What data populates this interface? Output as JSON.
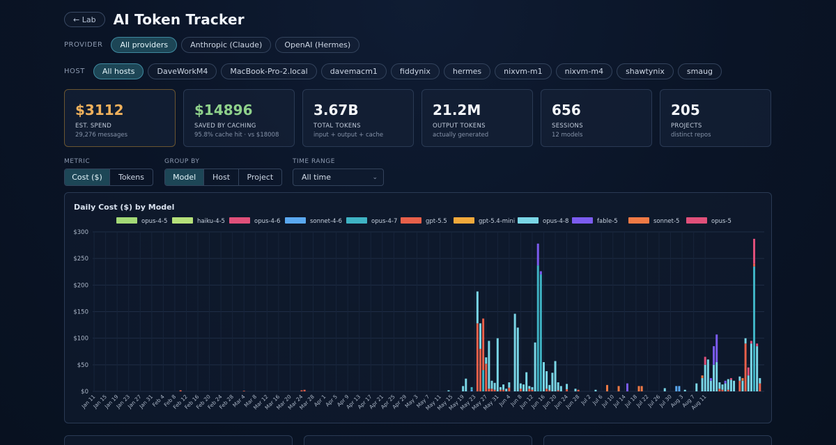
{
  "header": {
    "back_label": "← Lab",
    "title": "AI Token Tracker"
  },
  "provider": {
    "label": "PROVIDER",
    "options": [
      "All providers",
      "Anthropic (Claude)",
      "OpenAI (Hermes)"
    ],
    "selected": "All providers"
  },
  "host": {
    "label": "HOST",
    "options": [
      "All hosts",
      "DaveWorkM4",
      "MacBook-Pro-2.local",
      "davemacm1",
      "fiddynix",
      "hermes",
      "nixvm-m1",
      "nixvm-m4",
      "shawtynix",
      "smaug"
    ],
    "selected": "All hosts"
  },
  "stats": [
    {
      "value": "$3112",
      "title": "EST. SPEND",
      "sub": "29,276 messages",
      "color": "#f0b15c"
    },
    {
      "value": "$14896",
      "title": "SAVED BY CACHING",
      "sub": "95.8% cache hit · vs $18008",
      "color": "#8fd18b"
    },
    {
      "value": "3.67B",
      "title": "TOTAL TOKENS",
      "sub": "input + output + cache",
      "color": "#f4f7fb"
    },
    {
      "value": "21.2M",
      "title": "OUTPUT TOKENS",
      "sub": "actually generated",
      "color": "#f4f7fb"
    },
    {
      "value": "656",
      "title": "SESSIONS",
      "sub": "12 models",
      "color": "#f4f7fb"
    },
    {
      "value": "205",
      "title": "PROJECTS",
      "sub": "distinct repos",
      "color": "#f4f7fb"
    }
  ],
  "controls": {
    "metric": {
      "label": "METRIC",
      "options": [
        "Cost ($)",
        "Tokens"
      ],
      "selected": "Cost ($)"
    },
    "group_by": {
      "label": "GROUP BY",
      "options": [
        "Model",
        "Host",
        "Project"
      ],
      "selected": "Model"
    },
    "time_range": {
      "label": "TIME RANGE",
      "value": "All time"
    }
  },
  "chart_data": {
    "type": "bar",
    "stacked": true,
    "title": "Daily Cost ($) by Model",
    "ylim": [
      0,
      300
    ],
    "yticks": [
      "$0",
      "$50",
      "$100",
      "$150",
      "$200",
      "$250",
      "$300"
    ],
    "grid": true,
    "legend_position": "top",
    "series": [
      {
        "name": "opus-4-5",
        "color": "#a3d977"
      },
      {
        "name": "haiku-4-5",
        "color": "#b5e07a"
      },
      {
        "name": "opus-4-6",
        "color": "#e0507a"
      },
      {
        "name": "sonnet-4-6",
        "color": "#5aa8f0"
      },
      {
        "name": "opus-4-7",
        "color": "#3fb3c4"
      },
      {
        "name": "gpt-5.5",
        "color": "#e8604a"
      },
      {
        "name": "gpt-5.4-mini",
        "color": "#f2a93b"
      },
      {
        "name": "opus-4-8",
        "color": "#7ad6e6"
      },
      {
        "name": "fable-5",
        "color": "#7b5cf0"
      },
      {
        "name": "sonnet-5",
        "color": "#f07a45"
      },
      {
        "name": "opus-5",
        "color": "#e0507a"
      }
    ],
    "x_ticks": [
      "Jan 11",
      "Jan 15",
      "Jan 19",
      "Jan 23",
      "Jan 27",
      "Jan 31",
      "Feb 4",
      "Feb 8",
      "Feb 12",
      "Feb 16",
      "Feb 20",
      "Feb 24",
      "Feb 28",
      "Mar 4",
      "Mar 8",
      "Mar 12",
      "Mar 16",
      "Mar 20",
      "Mar 24",
      "Mar 28",
      "Apr 1",
      "Apr 5",
      "Apr 9",
      "Apr 13",
      "Apr 17",
      "Apr 21",
      "Apr 25",
      "Apr 29",
      "May 3",
      "May 7",
      "May 11",
      "May 15",
      "May 19",
      "May 23",
      "May 27",
      "May 31",
      "Jun 4",
      "Jun 8",
      "Jun 12",
      "Jun 16",
      "Jun 20",
      "Jun 24",
      "Jun 28",
      "Jul 2",
      "Jul 6",
      "Jul 10",
      "Jul 14",
      "Jul 18",
      "Jul 22",
      "Jul 26",
      "Jul 30",
      "Aug 3",
      "Aug 7",
      "Aug 11"
    ],
    "start_date": "Jan 11",
    "days": [
      {
        "d": 30,
        "s": {
          "gpt-5.5": 2
        }
      },
      {
        "d": 52,
        "s": {
          "gpt-5.5": 1
        }
      },
      {
        "d": 72,
        "s": {
          "gpt-5.5": 2
        }
      },
      {
        "d": 73,
        "s": {
          "gpt-5.5": 3
        }
      },
      {
        "d": 123,
        "s": {
          "opus-4-8": 2
        }
      },
      {
        "d": 128,
        "s": {
          "opus-4-8": 10
        }
      },
      {
        "d": 129,
        "s": {
          "opus-4-8": 24
        }
      },
      {
        "d": 131,
        "s": {
          "opus-4-7": 5,
          "sonnet-4-6": 3
        }
      },
      {
        "d": 133,
        "s": {
          "opus-4-8": 60,
          "gpt-5.5": 128
        }
      },
      {
        "d": 134,
        "s": {
          "opus-4-8": 48,
          "gpt-5.5": 80
        }
      },
      {
        "d": 135,
        "s": {
          "opus-4-7": 40,
          "gpt-5.5": 97
        }
      },
      {
        "d": 136,
        "s": {
          "opus-4-8": 12,
          "gpt-5.5": 52
        }
      },
      {
        "d": 137,
        "s": {
          "opus-4-8": 90,
          "gpt-5.5": 5
        }
      },
      {
        "d": 138,
        "s": {
          "opus-4-8": 15,
          "gpt-5.5": 5
        }
      },
      {
        "d": 139,
        "s": {
          "opus-4-8": 13,
          "gpt-5.5": 3
        }
      },
      {
        "d": 140,
        "s": {
          "opus-4-8": 100
        }
      },
      {
        "d": 141,
        "s": {
          "opus-4-8": 5,
          "gpt-5.5": 3
        }
      },
      {
        "d": 142,
        "s": {
          "opus-4-8": 10,
          "gpt-5.5": 3
        }
      },
      {
        "d": 143,
        "s": {
          "opus-4-8": 5
        }
      },
      {
        "d": 144,
        "s": {
          "opus-4-8": 10,
          "gpt-5.5": 7
        }
      },
      {
        "d": 146,
        "s": {
          "opus-4-8": 146
        }
      },
      {
        "d": 147,
        "s": {
          "opus-4-8": 120
        }
      },
      {
        "d": 148,
        "s": {
          "opus-4-8": 10,
          "gpt-5.5": 5
        }
      },
      {
        "d": 149,
        "s": {
          "opus-4-8": 13
        }
      },
      {
        "d": 150,
        "s": {
          "opus-4-8": 36
        }
      },
      {
        "d": 151,
        "s": {
          "opus-4-8": 5,
          "gpt-5.5": 5
        }
      },
      {
        "d": 152,
        "s": {
          "opus-4-8": 5,
          "gpt-5.5": 3
        }
      },
      {
        "d": 153,
        "s": {
          "opus-4-8": 92
        }
      },
      {
        "d": 154,
        "s": {
          "opus-4-7": 237,
          "fable-5": 41
        }
      },
      {
        "d": 155,
        "s": {
          "opus-4-7": 220,
          "fable-5": 6
        }
      },
      {
        "d": 156,
        "s": {
          "opus-4-8": 55
        }
      },
      {
        "d": 157,
        "s": {
          "opus-4-8": 33,
          "gpt-5.5": 5
        }
      },
      {
        "d": 158,
        "s": {
          "opus-4-8": 10,
          "gpt-5.5": 2
        }
      },
      {
        "d": 159,
        "s": {
          "opus-4-8": 35
        }
      },
      {
        "d": 160,
        "s": {
          "opus-4-8": 57
        }
      },
      {
        "d": 161,
        "s": {
          "opus-4-8": 15,
          "gpt-5.5": 2
        }
      },
      {
        "d": 162,
        "s": {
          "opus-4-8": 10
        }
      },
      {
        "d": 164,
        "s": {
          "opus-4-8": 10,
          "gpt-5.5": 4
        }
      },
      {
        "d": 167,
        "s": {
          "opus-4-8": 5
        }
      },
      {
        "d": 168,
        "s": {
          "gpt-5.5": 3
        }
      },
      {
        "d": 174,
        "s": {
          "opus-4-8": 3
        }
      },
      {
        "d": 178,
        "s": {
          "sonnet-5": 12
        }
      },
      {
        "d": 182,
        "s": {
          "sonnet-5": 10
        }
      },
      {
        "d": 185,
        "s": {
          "fable-5": 15
        }
      },
      {
        "d": 189,
        "s": {
          "sonnet-5": 10
        }
      },
      {
        "d": 190,
        "s": {
          "sonnet-5": 10
        }
      },
      {
        "d": 198,
        "s": {
          "opus-4-8": 6
        }
      },
      {
        "d": 202,
        "s": {
          "sonnet-4-6": 10
        }
      },
      {
        "d": 203,
        "s": {
          "sonnet-4-6": 10
        }
      },
      {
        "d": 205,
        "s": {
          "opus-4-8": 3
        }
      },
      {
        "d": 209,
        "s": {
          "opus-4-8": 15
        }
      },
      {
        "d": 211,
        "s": {
          "opus-4-8": 25,
          "sonnet-5": 5
        }
      },
      {
        "d": 212,
        "s": {
          "opus-4-8": 50,
          "opus-5": 15
        }
      },
      {
        "d": 213,
        "s": {
          "opus-4-8": 60
        }
      },
      {
        "d": 214,
        "s": {
          "opus-4-8": 20,
          "fable-5": 5
        }
      },
      {
        "d": 215,
        "s": {
          "opus-4-8": 50,
          "fable-5": 35
        }
      },
      {
        "d": 216,
        "s": {
          "opus-4-8": 55,
          "fable-5": 52
        }
      },
      {
        "d": 217,
        "s": {
          "opus-4-8": 12,
          "gpt-5.5": 5
        }
      },
      {
        "d": 218,
        "s": {
          "opus-4-8": 10,
          "gpt-5.5": 3
        }
      },
      {
        "d": 219,
        "s": {
          "opus-4-8": 15,
          "fable-5": 5
        }
      },
      {
        "d": 220,
        "s": {
          "opus-4-8": 20,
          "gpt-5.5": 3
        }
      },
      {
        "d": 221,
        "s": {
          "opus-4-8": 22,
          "opus-5": 3
        }
      },
      {
        "d": 222,
        "s": {
          "opus-4-8": 20
        }
      },
      {
        "d": 224,
        "s": {
          "opus-4-8": 8,
          "gpt-5.5": 20
        }
      },
      {
        "d": 225,
        "s": {
          "opus-4-8": 20,
          "sonnet-5": 5
        }
      },
      {
        "d": 226,
        "s": {
          "opus-4-8": 10,
          "gpt-5.5": 90
        }
      },
      {
        "d": 227,
        "s": {
          "opus-4-8": 30,
          "opus-5": 15
        }
      },
      {
        "d": 228,
        "s": {
          "opus-4-8": 90,
          "opus-5": 5
        }
      },
      {
        "d": 229,
        "s": {
          "opus-4-7": 235,
          "gpt-5.5": 5,
          "opus-5": 47
        }
      },
      {
        "d": 230,
        "s": {
          "opus-4-8": 85,
          "opus-5": 5
        }
      },
      {
        "d": 231,
        "s": {
          "opus-4-8": 10,
          "gpt-5.5": 15
        }
      }
    ]
  }
}
